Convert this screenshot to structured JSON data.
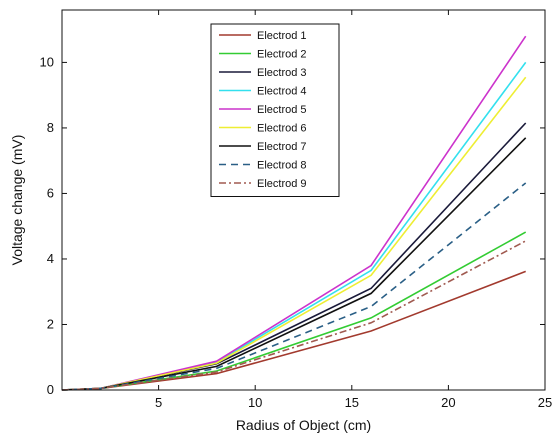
{
  "chart_data": {
    "type": "line",
    "title": "",
    "xlabel": "Radius of Object (cm)",
    "ylabel": "Voltage change (mV)",
    "xlim": [
      0,
      25
    ],
    "ylim": [
      0,
      11.6
    ],
    "xticks": [
      5,
      10,
      15,
      20,
      25
    ],
    "yticks": [
      0,
      2,
      4,
      6,
      8,
      10
    ],
    "grid": false,
    "legend_position": "top-center",
    "x": [
      0,
      2,
      8,
      16,
      24
    ],
    "series": [
      {
        "name": "Electrod 1",
        "color": "#a23a2e",
        "dash": "solid",
        "values": [
          0,
          0.05,
          0.5,
          1.8,
          3.62
        ]
      },
      {
        "name": "Electrod 2",
        "color": "#33cc33",
        "dash": "solid",
        "values": [
          0,
          0.05,
          0.58,
          2.2,
          4.82
        ]
      },
      {
        "name": "Electrod 3",
        "color": "#1a1a3a",
        "dash": "solid",
        "values": [
          0,
          0.05,
          0.8,
          3.1,
          8.15
        ]
      },
      {
        "name": "Electrod 4",
        "color": "#33e0ee",
        "dash": "solid",
        "values": [
          0,
          0.05,
          0.85,
          3.65,
          10.0
        ]
      },
      {
        "name": "Electrod 5",
        "color": "#cc33cc",
        "dash": "solid",
        "values": [
          0,
          0.05,
          0.88,
          3.8,
          10.8
        ]
      },
      {
        "name": "Electrod 6",
        "color": "#eeee33",
        "dash": "solid",
        "values": [
          0,
          0.05,
          0.82,
          3.5,
          9.55
        ]
      },
      {
        "name": "Electrod 7",
        "color": "#111111",
        "dash": "solid",
        "values": [
          0,
          0.05,
          0.72,
          2.95,
          7.7
        ]
      },
      {
        "name": "Electrod 8",
        "color": "#2a5f86",
        "dash": "dashed",
        "values": [
          0,
          0.05,
          0.66,
          2.55,
          6.32
        ]
      },
      {
        "name": "Electrod 9",
        "color": "#a05a50",
        "dash": "dashdot",
        "values": [
          0,
          0.05,
          0.55,
          2.05,
          4.55
        ]
      }
    ]
  }
}
